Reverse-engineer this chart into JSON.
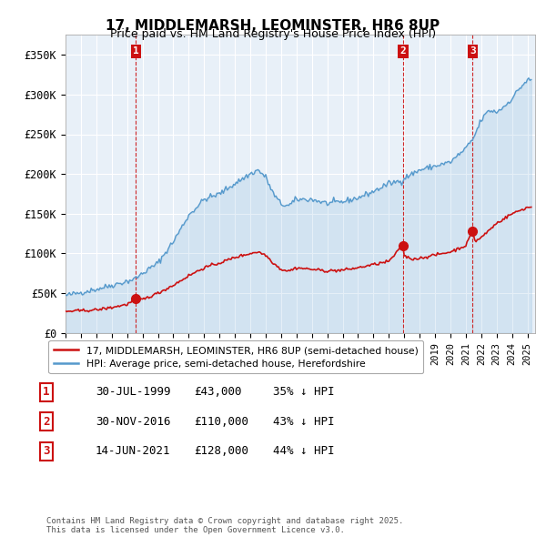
{
  "title": "17, MIDDLEMARSH, LEOMINSTER, HR6 8UP",
  "subtitle": "Price paid vs. HM Land Registry's House Price Index (HPI)",
  "ylabel_ticks": [
    "£0",
    "£50K",
    "£100K",
    "£150K",
    "£200K",
    "£250K",
    "£300K",
    "£350K"
  ],
  "ytick_values": [
    0,
    50000,
    100000,
    150000,
    200000,
    250000,
    300000,
    350000
  ],
  "ylim": [
    0,
    375000
  ],
  "xlim_start": 1995.0,
  "xlim_end": 2025.5,
  "hpi_color": "#5599cc",
  "hpi_fill_color": "#ddeeff",
  "price_color": "#cc1111",
  "vline_color": "#cc1111",
  "legend_label_price": "17, MIDDLEMARSH, LEOMINSTER, HR6 8UP (semi-detached house)",
  "legend_label_hpi": "HPI: Average price, semi-detached house, Herefordshire",
  "sales": [
    {
      "num": 1,
      "date": "30-JUL-1999",
      "price": 43000,
      "year": 1999.58,
      "hpi_pct": "35% ↓ HPI"
    },
    {
      "num": 2,
      "date": "30-NOV-2016",
      "price": 110000,
      "year": 2016.92,
      "hpi_pct": "43% ↓ HPI"
    },
    {
      "num": 3,
      "date": "14-JUN-2021",
      "price": 128000,
      "year": 2021.45,
      "hpi_pct": "44% ↓ HPI"
    }
  ],
  "footnote": "Contains HM Land Registry data © Crown copyright and database right 2025.\nThis data is licensed under the Open Government Licence v3.0.",
  "background_color": "#ffffff",
  "plot_bg_color": "#e8f0f8",
  "grid_color": "#ffffff"
}
